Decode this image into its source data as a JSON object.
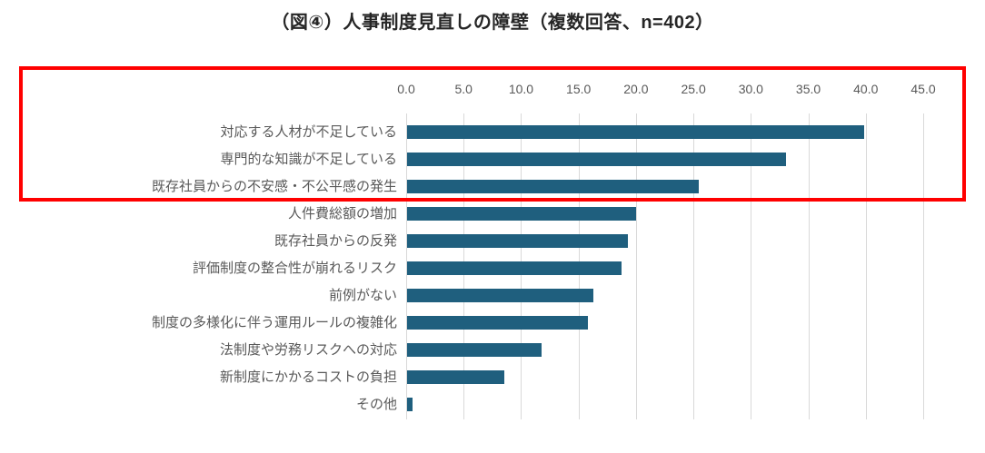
{
  "figure": {
    "title": "（図④）人事制度見直しの障壁（複数回答、n=402）"
  },
  "chart_data": {
    "type": "bar",
    "orientation": "horizontal",
    "title": "（図④）人事制度見直しの障壁（複数回答、n=402）",
    "sample_size_label": "n=402",
    "categories": [
      "対応する人材が不足している",
      "専門的な知識が不足している",
      "既存社員からの不安感・不公平感の発生",
      "人件費総額の増加",
      "既存社員からの反発",
      "評価制度の整合性が崩れるリスク",
      "前例がない",
      "制度の多様化に伴う運用ルールの複雑化",
      "法制度や労務リスクへの対応",
      "新制度にかかるコストの負担",
      "その他"
    ],
    "values": [
      39.8,
      33.0,
      25.4,
      19.9,
      19.2,
      18.7,
      16.2,
      15.7,
      11.7,
      8.5,
      0.5
    ],
    "x_ticks": [
      "0.0",
      "5.0",
      "10.0",
      "15.0",
      "20.0",
      "25.0",
      "30.0",
      "35.0",
      "40.0",
      "45.0"
    ],
    "xlim": [
      0,
      45
    ],
    "grid": true,
    "legend": "none",
    "bar_color": "#1F5F7E",
    "gridline_color": "#D9D9D9",
    "axis_label_color": "#595959",
    "title_color": "#262626",
    "highlight": {
      "shape": "rectangle",
      "color": "#FF0000",
      "rows_enclosed": [
        0,
        1,
        2
      ]
    }
  }
}
